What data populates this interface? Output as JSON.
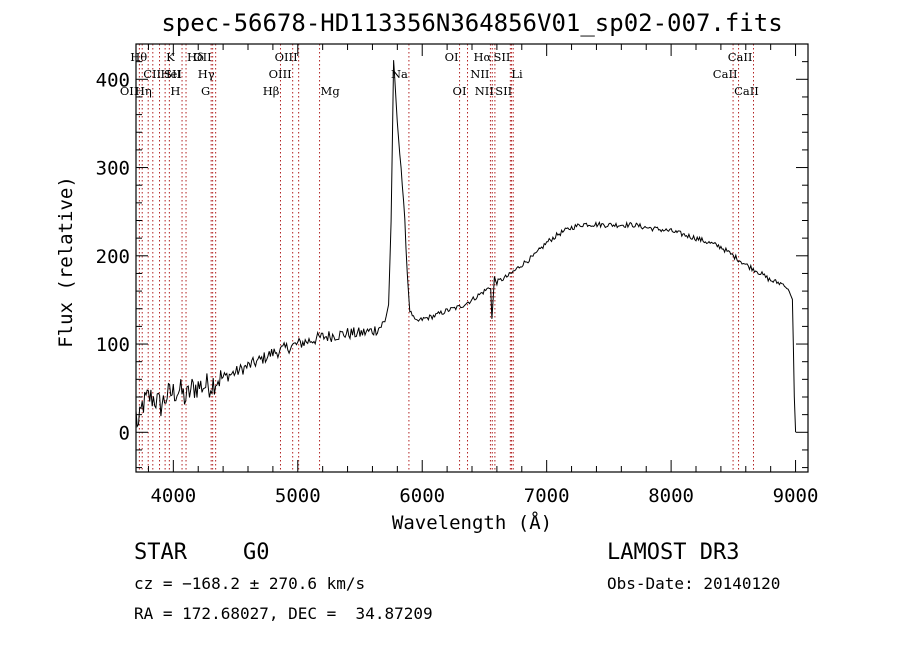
{
  "chart_data": {
    "type": "line",
    "title": "spec-56678-HD113356N364856V01_sp02-007.fits",
    "xlabel": "Wavelength (Å)",
    "ylabel": "Flux (relative)",
    "xlim": [
      3700,
      9100
    ],
    "ylim": [
      -45,
      440
    ],
    "xticks": [
      4000,
      5000,
      6000,
      7000,
      8000,
      9000
    ],
    "yticks": [
      0,
      100,
      200,
      300,
      400
    ],
    "series": [
      {
        "name": "spectrum",
        "x": [
          3700,
          3720,
          3750,
          3800,
          3850,
          3900,
          3950,
          4000,
          4050,
          4100,
          4150,
          4200,
          4250,
          4300,
          4350,
          4400,
          4500,
          4600,
          4700,
          4800,
          4850,
          4900,
          5000,
          5100,
          5200,
          5300,
          5400,
          5500,
          5600,
          5650,
          5700,
          5730,
          5750,
          5770,
          5780,
          5800,
          5830,
          5860,
          5880,
          5900,
          5950,
          6000,
          6050,
          6100,
          6200,
          6300,
          6400,
          6500,
          6550,
          6560,
          6580,
          6600,
          6700,
          6800,
          6900,
          7000,
          7100,
          7200,
          7300,
          7500,
          7700,
          7800,
          7900,
          8000,
          8200,
          8400,
          8500,
          8600,
          8700,
          8800,
          8850,
          8900,
          8950,
          8975,
          8990,
          9000
        ],
        "values": [
          20,
          5,
          30,
          40,
          38,
          30,
          42,
          45,
          48,
          38,
          50,
          52,
          53,
          54,
          60,
          62,
          68,
          75,
          82,
          90,
          92,
          95,
          100,
          104,
          108,
          110,
          112,
          112,
          115,
          118,
          125,
          145,
          240,
          420,
          400,
          350,
          300,
          240,
          180,
          138,
          125,
          128,
          130,
          132,
          138,
          142,
          150,
          160,
          165,
          128,
          175,
          170,
          178,
          190,
          200,
          215,
          225,
          232,
          236,
          235,
          235,
          232,
          230,
          228,
          220,
          210,
          200,
          190,
          182,
          172,
          170,
          168,
          160,
          150,
          40,
          0
        ]
      }
    ],
    "spectral_lines": [
      {
        "label": "Hθ",
        "x": 3798,
        "row": 1,
        "side": "left"
      },
      {
        "label": "K",
        "x": 3934,
        "row": 1,
        "side": "right"
      },
      {
        "label": "Hδ",
        "x": 4102,
        "row": 1,
        "side": "right"
      },
      {
        "label": "OII",
        "x": 4316,
        "row": 1,
        "side": "left"
      },
      {
        "label": "OIII",
        "x": 5007,
        "row": 1,
        "side": "left"
      },
      {
        "label": "OI",
        "x": 6300,
        "row": 1,
        "side": "left"
      },
      {
        "label": "Hα",
        "x": 6563,
        "row": 1,
        "side": "left"
      },
      {
        "label": "SII",
        "x": 6717,
        "row": 1,
        "side": "left"
      },
      {
        "label": "CaII",
        "x": 8662,
        "row": 1,
        "side": "left"
      },
      {
        "label": "CII",
        "x": 3750,
        "row": 2,
        "side": "right"
      },
      {
        "label": "HeI",
        "x": 3889,
        "row": 2,
        "side": "right"
      },
      {
        "label": "SII",
        "x": 4070,
        "row": 2,
        "side": "left"
      },
      {
        "label": "Hγ",
        "x": 4340,
        "row": 2,
        "side": "left"
      },
      {
        "label": "OIII",
        "x": 4959,
        "row": 2,
        "side": "left"
      },
      {
        "label": "Na",
        "x": 5893,
        "row": 2,
        "side": "left"
      },
      {
        "label": "NII",
        "x": 6548,
        "row": 2,
        "side": "left"
      },
      {
        "label": "Li",
        "x": 6708,
        "row": 2,
        "side": "right"
      },
      {
        "label": "CaII",
        "x": 8542,
        "row": 2,
        "side": "left"
      },
      {
        "label": "OII",
        "x": 3727,
        "row": 3,
        "side": "left"
      },
      {
        "label": "Hη",
        "x": 3835,
        "row": 3,
        "side": "left"
      },
      {
        "label": "H",
        "x": 3968,
        "row": 3,
        "side": "right"
      },
      {
        "label": "G",
        "x": 4304,
        "row": 3,
        "side": "left"
      },
      {
        "label": "Hβ",
        "x": 4861,
        "row": 3,
        "side": "left"
      },
      {
        "label": "Mg",
        "x": 5175,
        "row": 3,
        "side": "right"
      },
      {
        "label": "OI",
        "x": 6364,
        "row": 3,
        "side": "left"
      },
      {
        "label": "NII",
        "x": 6584,
        "row": 3,
        "side": "left"
      },
      {
        "label": "SII",
        "x": 6731,
        "row": 3,
        "side": "left"
      },
      {
        "label": "CaII",
        "x": 8498,
        "row": 3,
        "side": "right"
      }
    ],
    "line_color": "#000000",
    "marker_color": "#b22222"
  },
  "info": {
    "class_label": "STAR",
    "subclass": "G0",
    "survey": "LAMOST DR3",
    "cz": "cz = −168.2 ± 270.6 km/s",
    "obs_date": "Obs-Date: 20140120",
    "coords": "RA = 172.68027, DEC =  34.87209"
  }
}
